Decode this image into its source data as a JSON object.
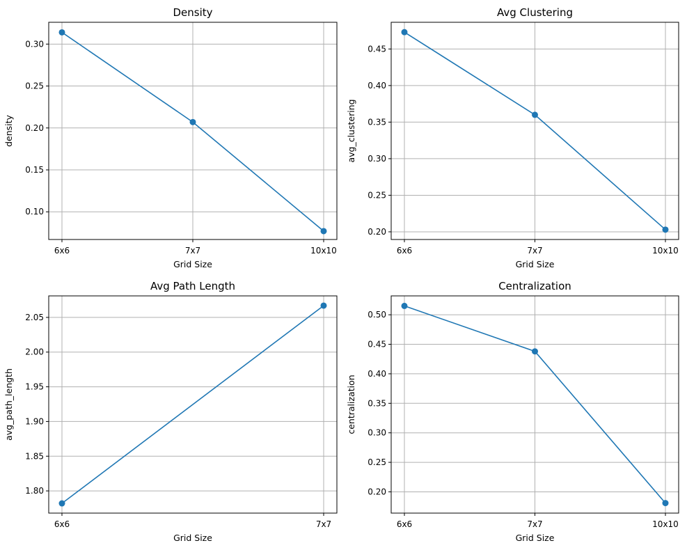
{
  "chart_data": [
    {
      "type": "line",
      "title": "Density",
      "xlabel": "Grid Size",
      "ylabel": "density",
      "categories": [
        "6x6",
        "7x7",
        "10x10"
      ],
      "values": [
        0.314,
        0.207,
        0.077
      ],
      "ylim": [
        0.067,
        0.326
      ],
      "yticks": [
        "0.10",
        "0.15",
        "0.20",
        "0.25",
        "0.30"
      ],
      "grid": true,
      "color": "#1f77b4"
    },
    {
      "type": "line",
      "title": "Avg Clustering",
      "xlabel": "Grid Size",
      "ylabel": "avg_clustering",
      "categories": [
        "6x6",
        "7x7",
        "10x10"
      ],
      "values": [
        0.473,
        0.36,
        0.203
      ],
      "ylim": [
        0.1895,
        0.4865
      ],
      "yticks": [
        "0.20",
        "0.25",
        "0.30",
        "0.35",
        "0.40",
        "0.45"
      ],
      "grid": true,
      "color": "#1f77b4"
    },
    {
      "type": "line",
      "title": "Avg Path Length",
      "xlabel": "Grid Size",
      "ylabel": "avg_path_length",
      "categories": [
        "6x6",
        "7x7"
      ],
      "values": [
        1.782,
        2.067
      ],
      "ylim": [
        1.768,
        2.081
      ],
      "yticks": [
        "1.80",
        "1.85",
        "1.90",
        "1.95",
        "2.00",
        "2.05"
      ],
      "grid": true,
      "color": "#1f77b4"
    },
    {
      "type": "line",
      "title": "Centralization",
      "xlabel": "Grid Size",
      "ylabel": "centralization",
      "categories": [
        "6x6",
        "7x7",
        "10x10"
      ],
      "values": [
        0.515,
        0.438,
        0.181
      ],
      "ylim": [
        0.164,
        0.532
      ],
      "yticks": [
        "0.20",
        "0.25",
        "0.30",
        "0.35",
        "0.40",
        "0.45",
        "0.50"
      ],
      "grid": true,
      "color": "#1f77b4"
    }
  ]
}
